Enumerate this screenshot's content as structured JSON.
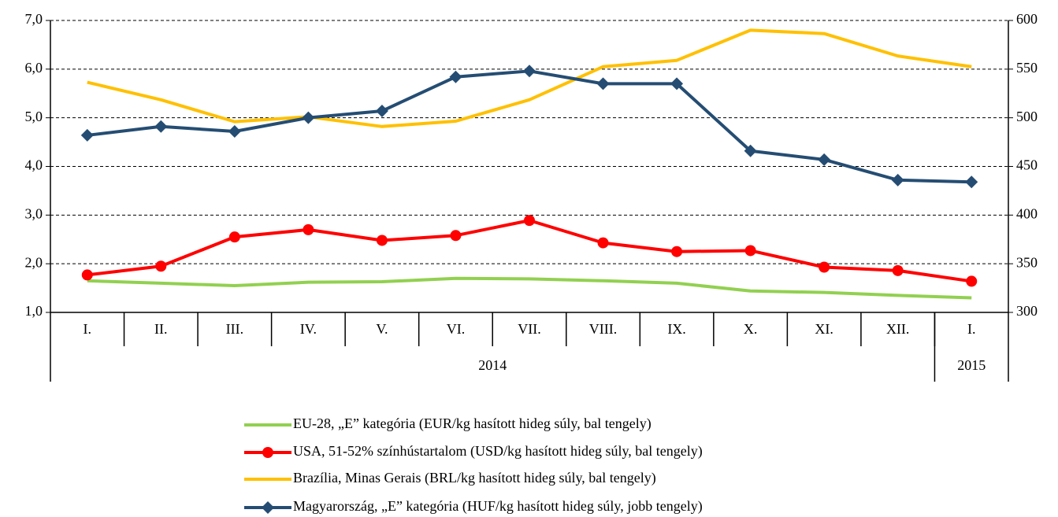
{
  "chart_data": {
    "type": "line",
    "categories": [
      "I.",
      "II.",
      "III.",
      "IV.",
      "V.",
      "VI.",
      "VII.",
      "VIII.",
      "IX.",
      "X.",
      "XI.",
      "XII.",
      "I."
    ],
    "x_groups": [
      {
        "label": "2014",
        "count": 12
      },
      {
        "label": "2015",
        "count": 1
      }
    ],
    "series": [
      {
        "name": "EU-28, „E” kategória (EUR/kg hasított hideg súly, bal tengely)",
        "color": "#92d050",
        "marker": "none",
        "values": [
          1.65,
          1.6,
          1.55,
          1.62,
          1.63,
          1.7,
          1.69,
          1.65,
          1.6,
          1.44,
          1.41,
          1.35,
          1.3
        ]
      },
      {
        "name": "USA, 51-52% színhústartalom (USD/kg hasított hideg súly, bal tengely)",
        "color": "#ff0000",
        "marker": "circle",
        "values": [
          1.77,
          1.95,
          2.55,
          2.7,
          2.48,
          2.58,
          2.89,
          2.43,
          2.25,
          2.27,
          1.93,
          1.86,
          1.64
        ]
      },
      {
        "name": "Brazília, Minas Gerais (BRL/kg hasított hideg súly, bal tengely)",
        "color": "#ffc000",
        "marker": "none",
        "values": [
          5.73,
          5.37,
          4.92,
          5.02,
          4.82,
          4.93,
          5.37,
          6.05,
          6.18,
          6.8,
          6.73,
          6.27,
          6.05
        ]
      },
      {
        "name": "Magyarország, „E” kategória (HUF/kg hasított hideg súly, jobb tengely)",
        "color": "#254d73",
        "marker": "diamond",
        "axis": "y2",
        "values": [
          482,
          491,
          486,
          500,
          507,
          542,
          548,
          535,
          535,
          466,
          457,
          436,
          434
        ]
      }
    ],
    "ylim": [
      1,
      7
    ],
    "yticks": [
      {
        "value": 1,
        "label": "1,0"
      },
      {
        "value": 2,
        "label": "2,0"
      },
      {
        "value": 3,
        "label": "3,0"
      },
      {
        "value": 4,
        "label": "4,0"
      },
      {
        "value": 5,
        "label": "5,0"
      },
      {
        "value": 6,
        "label": "6,0"
      },
      {
        "value": 7,
        "label": "7,0"
      }
    ],
    "y2lim": [
      300,
      600
    ],
    "y2ticks": [
      300,
      350,
      400,
      450,
      500,
      550,
      600
    ],
    "grid": true,
    "legend": "bottom"
  }
}
